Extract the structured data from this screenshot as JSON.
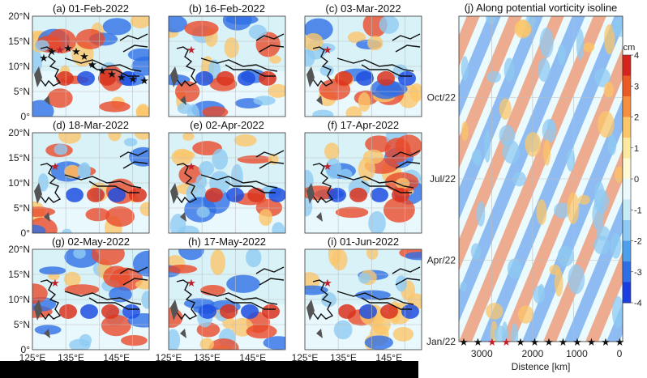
{
  "colors": {
    "positive": "#e0301e",
    "negative": "#1d4fe0",
    "neutral": "#fffbe0",
    "grid": "#bfbfbf",
    "coast": "#111111",
    "star": "#111111",
    "red_star": "#c0202a"
  },
  "chart_data": [
    {
      "id": "a",
      "type": "heatmap",
      "title": "(a) 01-Feb-2022"
    },
    {
      "id": "b",
      "type": "heatmap",
      "title": "(b) 16-Feb-2022"
    },
    {
      "id": "c",
      "type": "heatmap",
      "title": "(c) 03-Mar-2022"
    },
    {
      "id": "d",
      "type": "heatmap",
      "title": "(d) 18-Mar-2022"
    },
    {
      "id": "e",
      "type": "heatmap",
      "title": "(e) 02-Apr-2022"
    },
    {
      "id": "f",
      "type": "heatmap",
      "title": "(f) 17-Apr-2022"
    },
    {
      "id": "g",
      "type": "heatmap",
      "title": "(g) 02-May-2022"
    },
    {
      "id": "h",
      "type": "heatmap",
      "title": "(h) 17-May-2022"
    },
    {
      "id": "i",
      "type": "heatmap",
      "title": "(i) 01-Jun-2022"
    },
    {
      "id": "j",
      "type": "heatmap",
      "title": "(j) Along potential vorticity isoline",
      "xlabel": "Distence [km]",
      "x_ticks": [
        "3000",
        "2000",
        "1000",
        "0"
      ],
      "y_ticks": [
        "Jan/22",
        "Apr/22",
        "Jul/22",
        "Oct/22"
      ],
      "colorbar": {
        "unit": "cm",
        "range": [
          -4,
          4
        ],
        "ticks": [
          "4",
          "3",
          "2",
          "1",
          "0",
          "-1",
          "-2",
          "-3",
          "-4"
        ]
      }
    }
  ],
  "map_axes": {
    "lat_ticks": [
      "20°N",
      "15°N",
      "10°N",
      "5°N",
      "0°"
    ],
    "lon_ticks": [
      "125°E",
      "135°E",
      "145°E"
    ]
  }
}
